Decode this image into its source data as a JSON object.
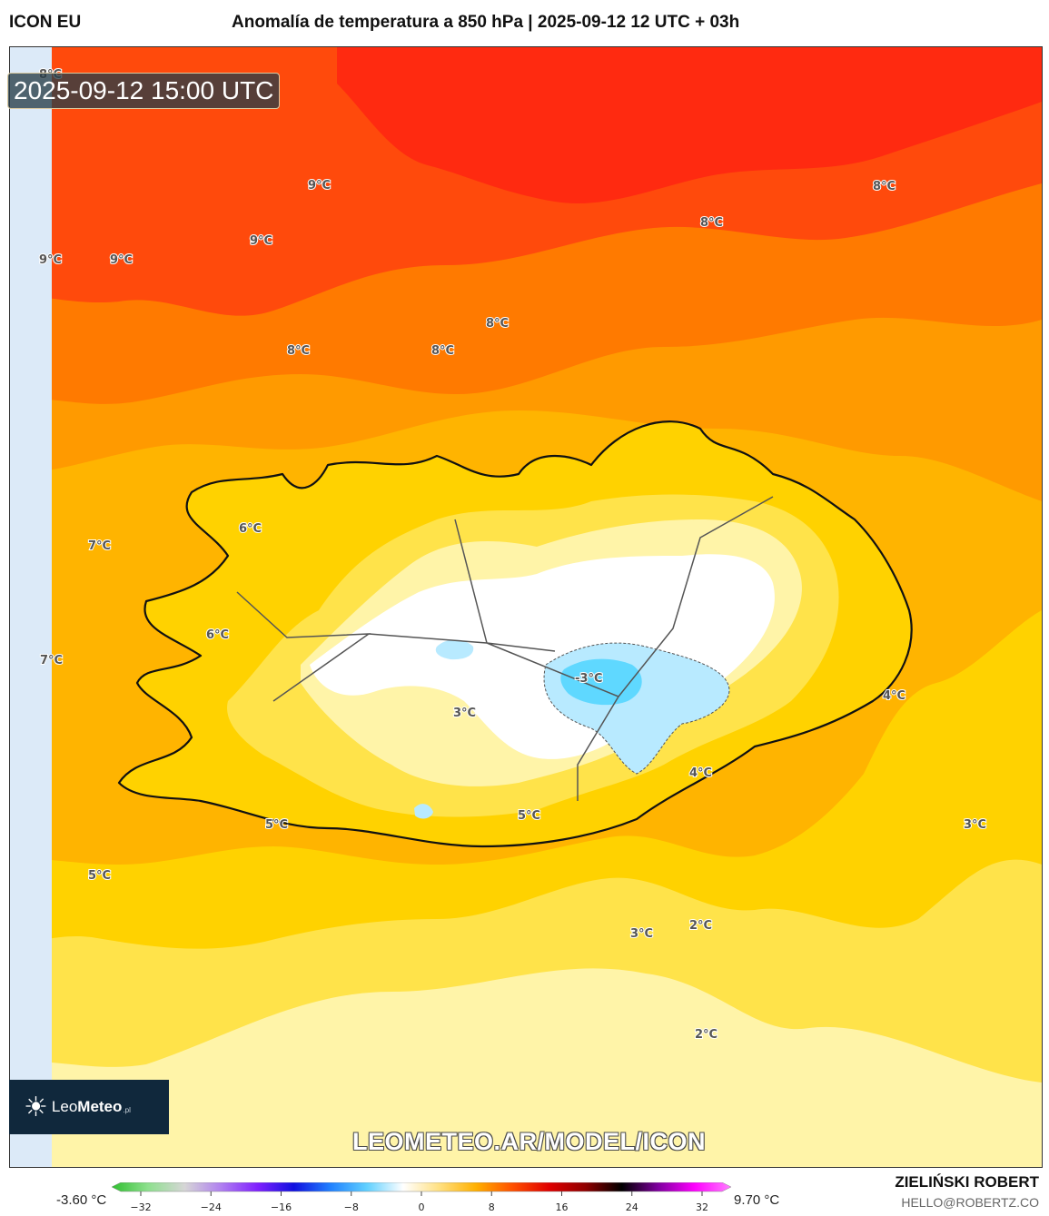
{
  "header": {
    "model": "ICON EU",
    "title": "Anomalía de temperatura a 850 hPa | 2025-09-12 12 UTC + 03h"
  },
  "map": {
    "timestamp": "2025-09-12 15:00 UTC",
    "labels": [
      {
        "text": "8°C",
        "where": "top-left edge"
      },
      {
        "text": "9°C",
        "where": "north sea"
      },
      {
        "text": "9°C",
        "where": "north sea"
      },
      {
        "text": "9°C",
        "where": "west edge"
      },
      {
        "text": "9°C",
        "where": "north-west sea"
      },
      {
        "text": "8°C",
        "where": "north-east sea"
      },
      {
        "text": "8°C",
        "where": "north sea"
      },
      {
        "text": "8°C",
        "where": "north sea"
      },
      {
        "text": "8°C",
        "where": "north sea"
      },
      {
        "text": "8°C",
        "where": "north sea"
      },
      {
        "text": "6°C",
        "where": "westfjords"
      },
      {
        "text": "7°C",
        "where": "westfjords"
      },
      {
        "text": "6°C",
        "where": "west iceland"
      },
      {
        "text": "7°C",
        "where": "west edge"
      },
      {
        "text": "-3°C",
        "where": "vatnajokull"
      },
      {
        "text": "3°C",
        "where": "central highlands"
      },
      {
        "text": "4°C",
        "where": "east sea"
      },
      {
        "text": "4°C",
        "where": "south-east coast"
      },
      {
        "text": "5°C",
        "where": "south-west sea"
      },
      {
        "text": "5°C",
        "where": "south coast"
      },
      {
        "text": "5°C",
        "where": "south-west sea"
      },
      {
        "text": "3°C",
        "where": "south-east sea"
      },
      {
        "text": "3°C",
        "where": "south sea"
      },
      {
        "text": "2°C",
        "where": "south sea"
      },
      {
        "text": "2°C",
        "where": "south sea"
      }
    ],
    "colors": {
      "deep_red": "#ff2a10",
      "red_orange": "#ff4a0c",
      "orange": "#ff7a00",
      "orange_light": "#ff9a00",
      "amber": "#ffb400",
      "gold": "#ffd200",
      "yellow": "#ffe34a",
      "pale_yellow": "#fff4a8",
      "cream": "#fffbe0",
      "cold_blue": "#5fd8ff",
      "light_blue": "#b8eaff",
      "left_strip": "#dceaf8",
      "coast": "#111111"
    }
  },
  "logo": {
    "icon": "sun-icon",
    "brand_light": "Leo",
    "brand_bold": "Meteo",
    "brand_suffix": ".pl"
  },
  "watermark": "LEOMETEO.AR/MODEL/ICON",
  "colorbar": {
    "min_label": "-3.60 °C",
    "max_label": "9.70 °C",
    "ticks": [
      "−32",
      "−24",
      "−16",
      "−8",
      "0",
      "8",
      "16",
      "24",
      "32"
    ],
    "range": [
      -32,
      32
    ],
    "gradient": [
      "#30c030",
      "#8ee08e",
      "#d6d6d6",
      "#b080f0",
      "#8020ff",
      "#1010e0",
      "#2080ff",
      "#60d0ff",
      "#ffffff",
      "#ffe080",
      "#ffb000",
      "#ff5000",
      "#e00000",
      "#900000",
      "#000000",
      "#8000a0",
      "#ff00ff",
      "#ff80ff"
    ]
  },
  "credits": {
    "author": "ZIELIŃSKI ROBERT",
    "email": "HELLO@ROBERTZ.CO"
  }
}
